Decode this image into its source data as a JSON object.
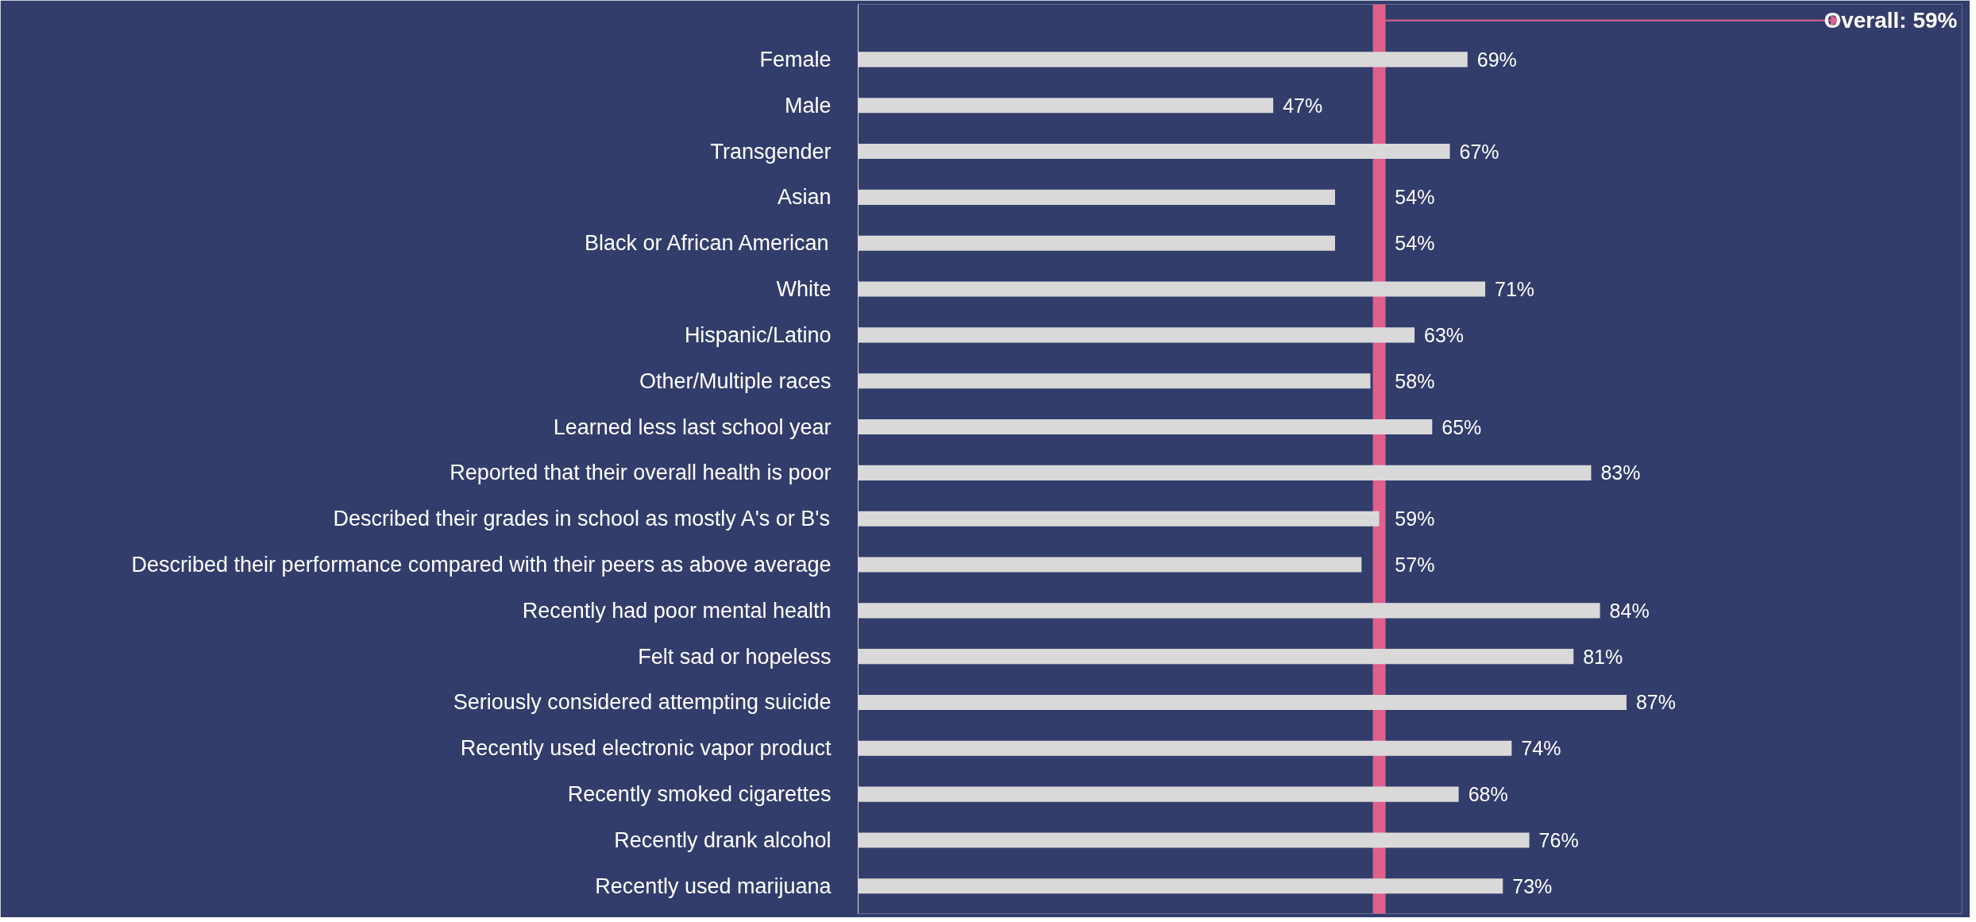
{
  "chart_data": {
    "type": "bar",
    "orientation": "horizontal",
    "categories": [
      "Female",
      "Male",
      "Transgender",
      "Asian",
      "Black or African American",
      "White",
      "Hispanic/Latino",
      "Other/Multiple races",
      "Learned less last school year",
      "Reported that their overall health is poor",
      "Described their grades in school as mostly A's or B's",
      "Described their performance compared with their peers as above average",
      "Recently had poor mental health",
      "Felt sad or hopeless",
      "Seriously considered attempting suicide",
      "Recently used electronic vapor product",
      "Recently smoked cigarettes",
      "Recently drank alcohol",
      "Recently used marijuana"
    ],
    "values": [
      69,
      47,
      67,
      54,
      54,
      71,
      63,
      58,
      65,
      83,
      59,
      57,
      84,
      81,
      87,
      74,
      68,
      76,
      73
    ],
    "value_labels": [
      "69%",
      "47%",
      "67%",
      "54%",
      "54%",
      "71%",
      "63%",
      "58%",
      "65%",
      "83%",
      "59%",
      "57%",
      "84%",
      "81%",
      "87%",
      "74%",
      "68%",
      "76%",
      "73%"
    ],
    "color": "#d9d9d9",
    "xlim": [
      0,
      125
    ],
    "tick_labels": "y",
    "grid": false,
    "ref_lines": [
      {
        "axis": "x",
        "value": 59,
        "label": "Overall: 59%",
        "color": "#e0608c"
      }
    ]
  }
}
